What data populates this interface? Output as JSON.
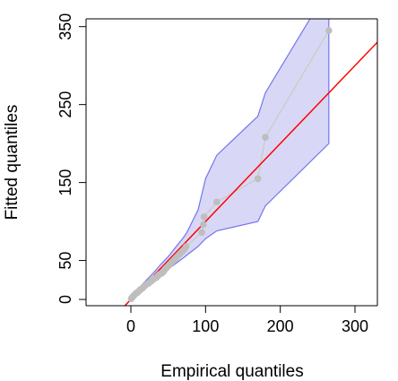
{
  "chart_data": {
    "type": "scatter",
    "title": "",
    "xlabel": "Empirical quantiles",
    "ylabel": "Fitted quantiles",
    "xlim": [
      -60,
      330
    ],
    "ylim": [
      -8,
      360
    ],
    "x_ticks": [
      0,
      100,
      200,
      300
    ],
    "y_ticks": [
      0,
      50,
      150,
      250,
      350
    ],
    "x_tick_labels": [
      "0",
      "100",
      "200",
      "300"
    ],
    "y_tick_labels": [
      "0",
      "50",
      "150",
      "250",
      "350"
    ],
    "grid": false,
    "legend": "none",
    "colors": {
      "points": "#bebebe",
      "reference_line": "#ff0000",
      "band_fill": "#d8d8f6",
      "band_edge": "#7474ee",
      "axis": "#000000"
    },
    "reference_line": {
      "slope": 1,
      "intercept": 0
    },
    "series": [
      {
        "kind": "points",
        "x": [
          0.5,
          2,
          3,
          5,
          7,
          9,
          11,
          13,
          15,
          17,
          19,
          22,
          24,
          26,
          28,
          30,
          32,
          34,
          36,
          38,
          40,
          42,
          44,
          45,
          47,
          48,
          50,
          52,
          54,
          56,
          58,
          60,
          62,
          64,
          66,
          68,
          70,
          72,
          74,
          95,
          97,
          98,
          115,
          170,
          180,
          265
        ],
        "y": [
          1,
          3,
          4,
          6,
          8,
          9,
          11,
          13,
          14,
          16,
          18,
          20,
          21,
          23,
          24,
          26,
          27,
          28,
          30,
          32,
          33,
          34,
          36,
          38,
          40,
          41,
          43,
          45,
          47,
          49,
          51,
          53,
          55,
          57,
          59,
          61,
          63,
          65,
          68,
          86,
          96,
          106,
          125,
          155,
          208,
          345
        ]
      },
      {
        "kind": "confidence_band",
        "x": [
          0,
          5,
          10,
          20,
          30,
          40,
          50,
          60,
          70,
          75,
          90,
          100,
          115,
          170,
          180,
          265
        ],
        "lower": [
          0,
          4,
          8,
          16,
          24,
          31,
          39,
          46,
          53,
          57,
          68,
          78,
          88,
          100,
          120,
          200
        ],
        "upper": [
          3,
          8,
          14,
          24,
          34,
          45,
          55,
          67,
          79,
          86,
          115,
          155,
          185,
          235,
          265,
          400
        ]
      }
    ]
  }
}
